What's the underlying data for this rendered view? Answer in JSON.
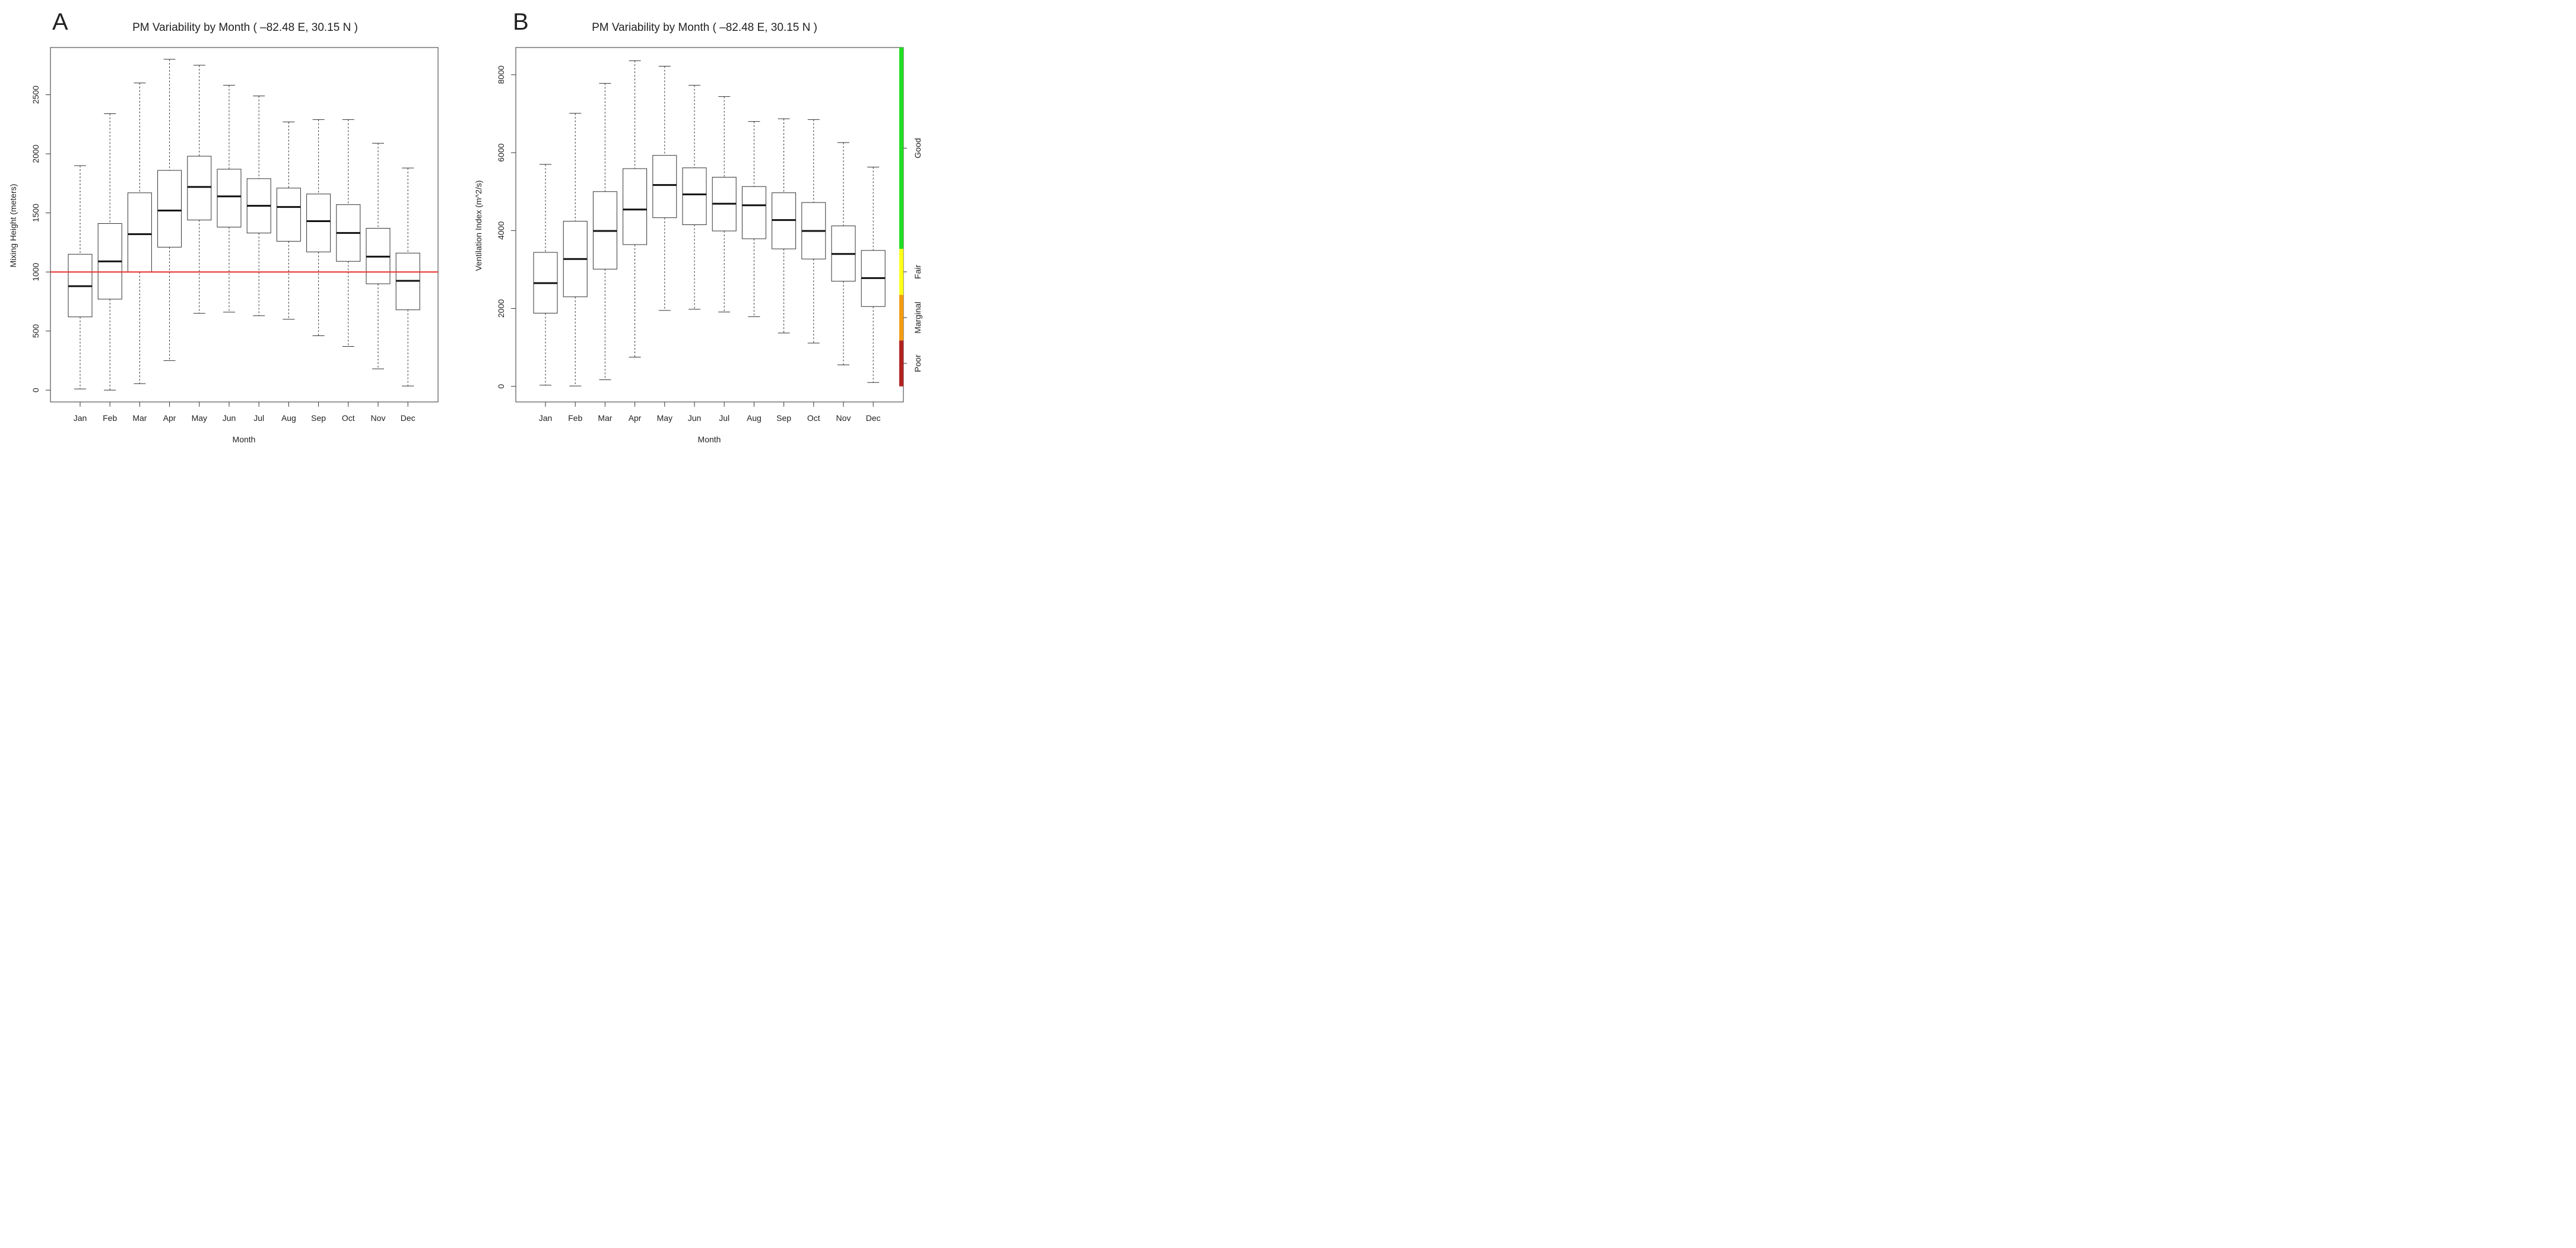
{
  "chart_data": [
    {
      "panel": "A",
      "type": "boxplot",
      "title": "PM Variability by Month ( –82.48 E, 30.15 N )",
      "xlabel": "Month",
      "ylabel": "Mixing Height (meters)",
      "ylim": [
        -100,
        2900
      ],
      "yticks": [
        0,
        500,
        1000,
        1500,
        2000,
        2500
      ],
      "categories": [
        "Jan",
        "Feb",
        "Mar",
        "Apr",
        "May",
        "Jun",
        "Jul",
        "Aug",
        "Sep",
        "Oct",
        "Nov",
        "Dec"
      ],
      "boxes": [
        {
          "min": 10,
          "q1": 620,
          "median": 880,
          "q3": 1150,
          "max": 1900
        },
        {
          "min": 0,
          "q1": 770,
          "median": 1090,
          "q3": 1410,
          "max": 2340
        },
        {
          "min": 55,
          "q1": 1000,
          "median": 1320,
          "q3": 1670,
          "max": 2600
        },
        {
          "min": 250,
          "q1": 1210,
          "median": 1520,
          "q3": 1860,
          "max": 2800
        },
        {
          "min": 650,
          "q1": 1440,
          "median": 1720,
          "q3": 1980,
          "max": 2750
        },
        {
          "min": 660,
          "q1": 1380,
          "median": 1640,
          "q3": 1870,
          "max": 2580
        },
        {
          "min": 630,
          "q1": 1330,
          "median": 1560,
          "q3": 1790,
          "max": 2490
        },
        {
          "min": 600,
          "q1": 1260,
          "median": 1550,
          "q3": 1710,
          "max": 2270
        },
        {
          "min": 460,
          "q1": 1170,
          "median": 1430,
          "q3": 1660,
          "max": 2290
        },
        {
          "min": 370,
          "q1": 1090,
          "median": 1330,
          "q3": 1570,
          "max": 2290
        },
        {
          "min": 180,
          "q1": 900,
          "median": 1130,
          "q3": 1370,
          "max": 2090
        },
        {
          "min": 35,
          "q1": 680,
          "median": 925,
          "q3": 1160,
          "max": 1880
        }
      ],
      "reference_line": {
        "value": 1000,
        "color": "#e8312f"
      },
      "grid": false
    },
    {
      "panel": "B",
      "type": "boxplot",
      "title": "PM Variability by Month ( –82.48 E, 30.15 N )",
      "xlabel": "Month",
      "ylabel": "Ventilation Index (m^2/s)",
      "ylim": [
        -400,
        8700
      ],
      "yticks": [
        0,
        2000,
        4000,
        6000,
        8000
      ],
      "categories": [
        "Jan",
        "Feb",
        "Mar",
        "Apr",
        "May",
        "Jun",
        "Jul",
        "Aug",
        "Sep",
        "Oct",
        "Nov",
        "Dec"
      ],
      "boxes": [
        {
          "min": 30,
          "q1": 1880,
          "median": 2650,
          "q3": 3440,
          "max": 5700
        },
        {
          "min": 10,
          "q1": 2300,
          "median": 3270,
          "q3": 4240,
          "max": 7010
        },
        {
          "min": 170,
          "q1": 3010,
          "median": 3990,
          "q3": 5000,
          "max": 7780
        },
        {
          "min": 750,
          "q1": 3640,
          "median": 4540,
          "q3": 5590,
          "max": 8360
        },
        {
          "min": 1950,
          "q1": 4330,
          "median": 5170,
          "q3": 5930,
          "max": 8220
        },
        {
          "min": 1980,
          "q1": 4150,
          "median": 4930,
          "q3": 5610,
          "max": 7730
        },
        {
          "min": 1910,
          "q1": 3990,
          "median": 4690,
          "q3": 5370,
          "max": 7440
        },
        {
          "min": 1790,
          "q1": 3790,
          "median": 4650,
          "q3": 5130,
          "max": 6800
        },
        {
          "min": 1370,
          "q1": 3530,
          "median": 4270,
          "q3": 4970,
          "max": 6870
        },
        {
          "min": 1110,
          "q1": 3270,
          "median": 3990,
          "q3": 4720,
          "max": 6850
        },
        {
          "min": 550,
          "q1": 2700,
          "median": 3400,
          "q3": 4120,
          "max": 6260
        },
        {
          "min": 100,
          "q1": 2050,
          "median": 2780,
          "q3": 3490,
          "max": 5630
        }
      ],
      "bands": [
        {
          "label": "Poor",
          "from": 0,
          "to": 1180,
          "color": "#b22222"
        },
        {
          "label": "Marginal",
          "from": 1180,
          "to": 2350,
          "color": "#f39c12"
        },
        {
          "label": "Fair",
          "from": 2350,
          "to": 3530,
          "color": "#ffff1a"
        },
        {
          "label": "Good",
          "from": 3530,
          "to": 8700,
          "color": "#22dd22"
        }
      ],
      "grid": false
    }
  ]
}
